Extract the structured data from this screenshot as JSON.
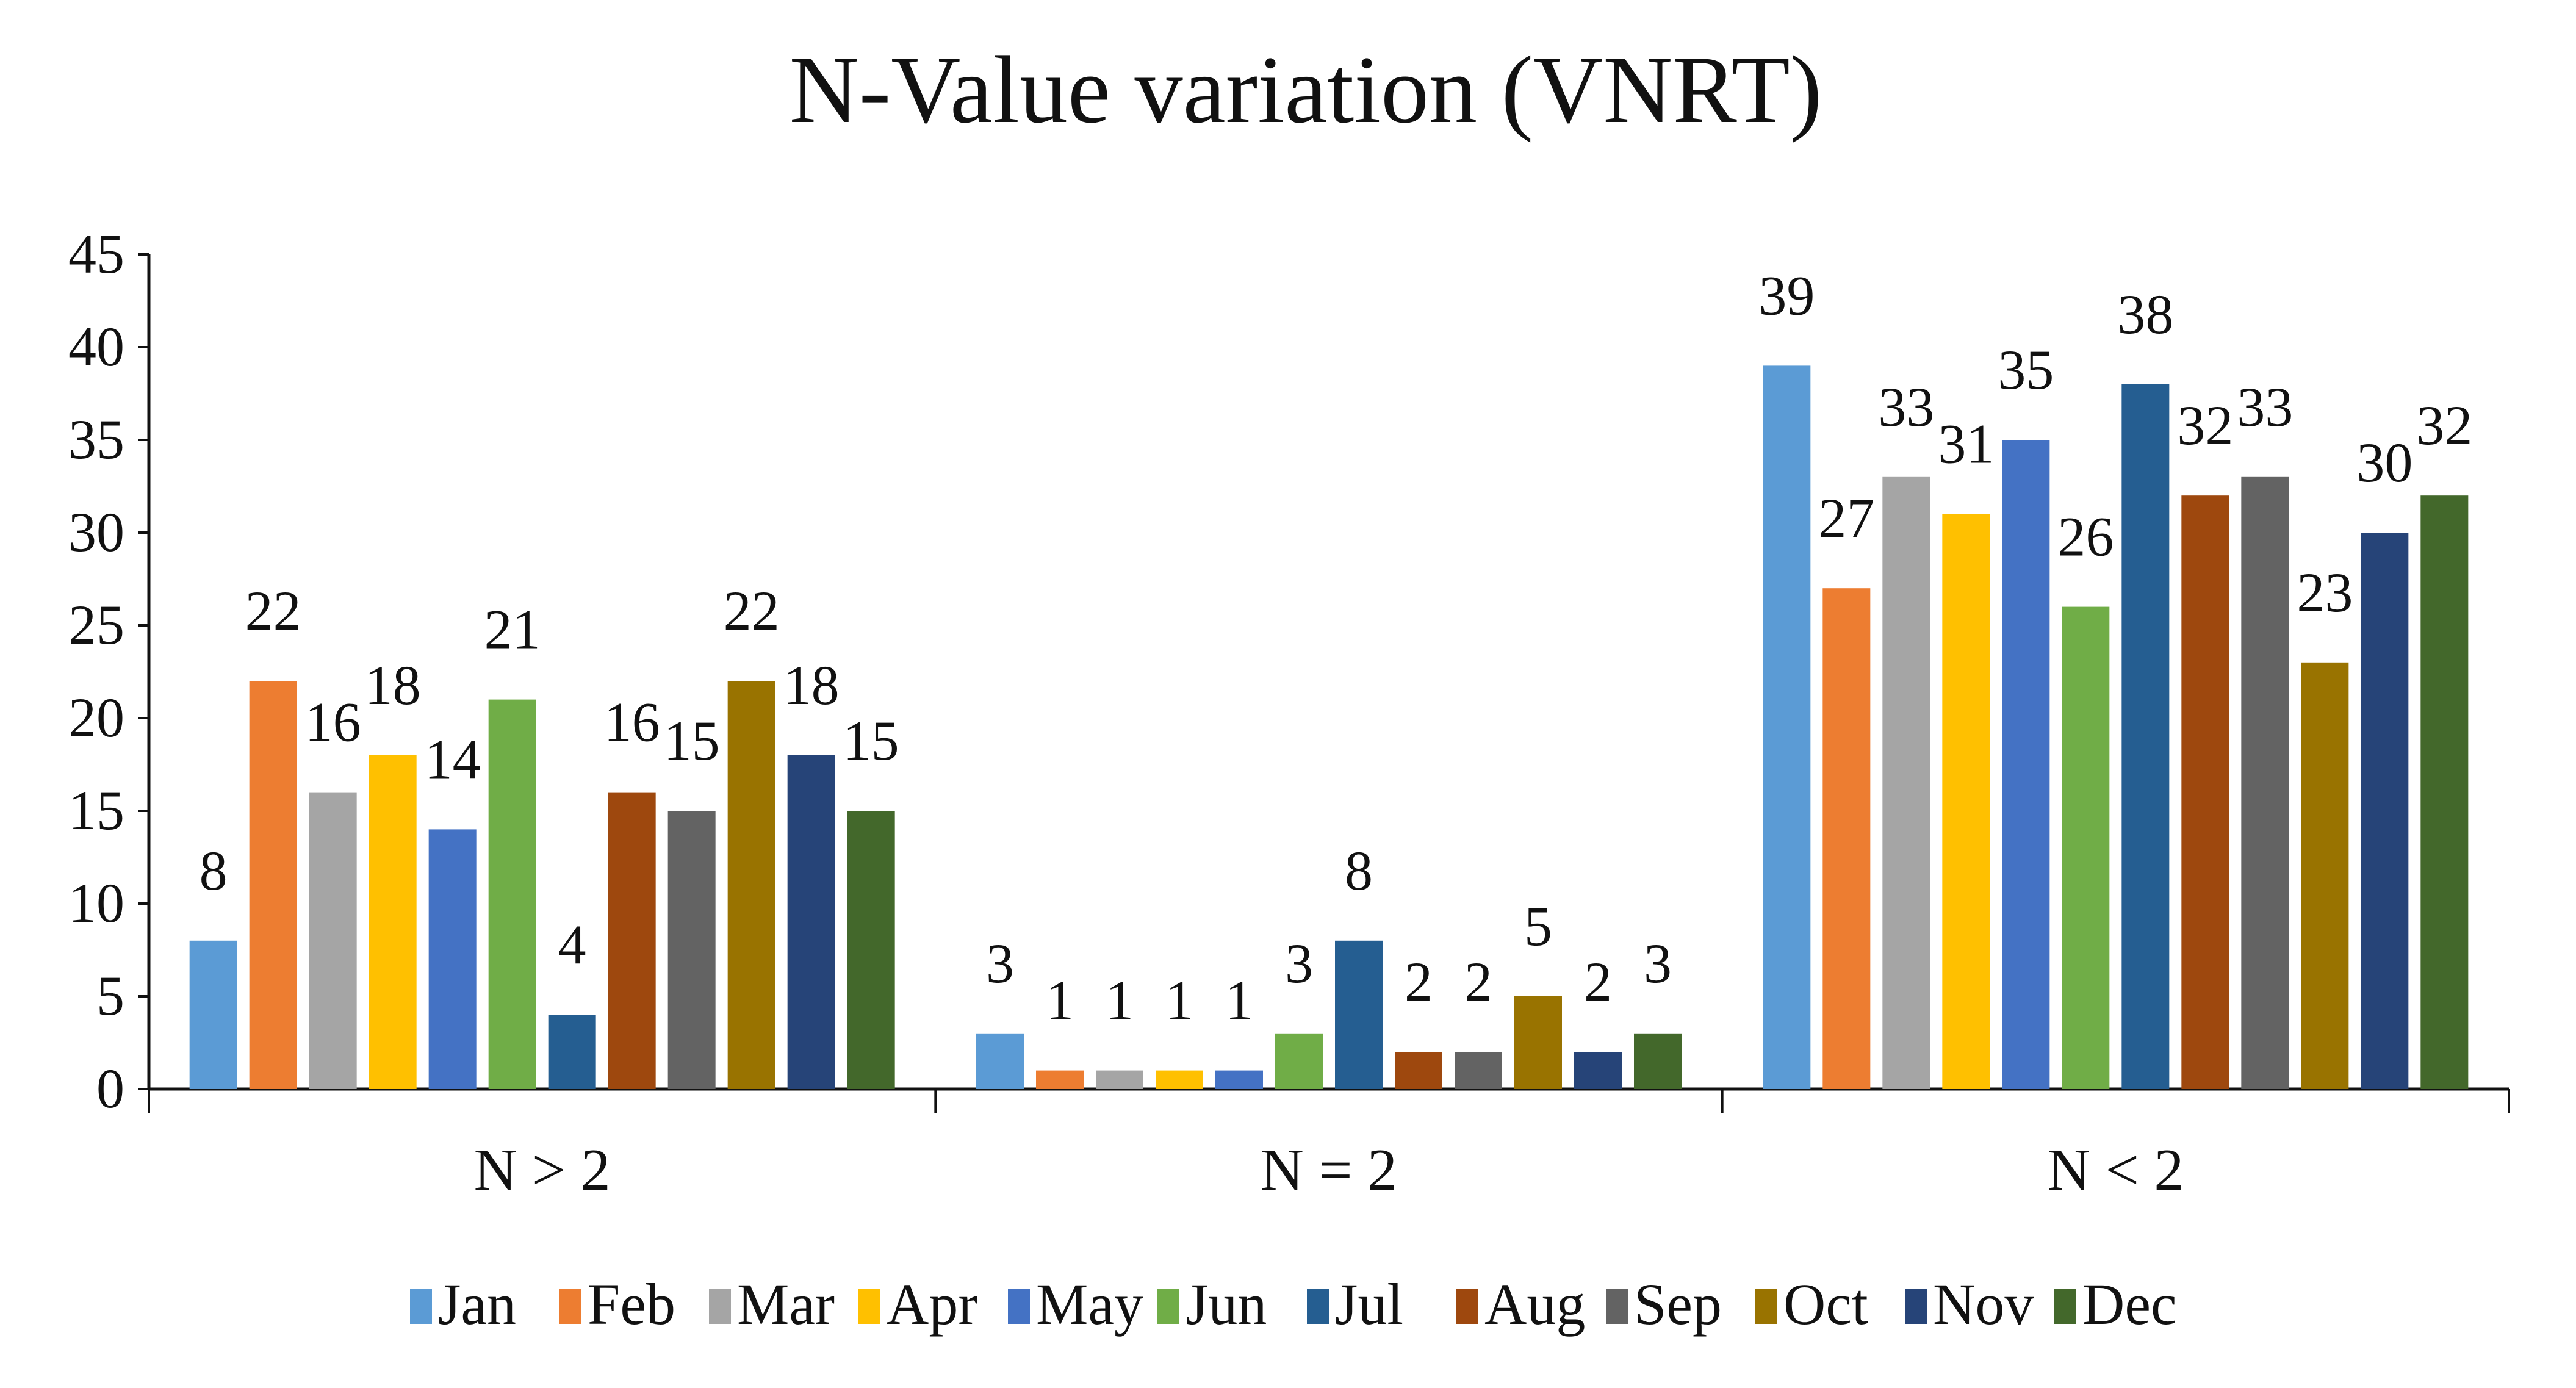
{
  "chart_data": {
    "type": "bar",
    "title": "N-Value variation (VNRT)",
    "xlabel": "",
    "ylabel": "",
    "ylim": [
      0,
      45
    ],
    "yticks": [
      0,
      5,
      10,
      15,
      20,
      25,
      30,
      35,
      40,
      45
    ],
    "grid": false,
    "legend_position": "bottom",
    "categories": [
      "N > 2",
      "N = 2",
      "N < 2"
    ],
    "series": [
      {
        "name": "Jan",
        "color": "#5B9BD5",
        "values": [
          8,
          3,
          39
        ]
      },
      {
        "name": "Feb",
        "color": "#ED7D31",
        "values": [
          22,
          1,
          27
        ]
      },
      {
        "name": "Mar",
        "color": "#A5A5A5",
        "values": [
          16,
          1,
          33
        ]
      },
      {
        "name": "Apr",
        "color": "#FFC000",
        "values": [
          18,
          1,
          31
        ]
      },
      {
        "name": "May",
        "color": "#4472C4",
        "values": [
          14,
          1,
          35
        ]
      },
      {
        "name": "Jun",
        "color": "#70AD47",
        "values": [
          21,
          3,
          26
        ]
      },
      {
        "name": "Jul",
        "color": "#255E91",
        "values": [
          4,
          8,
          38
        ]
      },
      {
        "name": "Aug",
        "color": "#9E480E",
        "values": [
          16,
          2,
          32
        ]
      },
      {
        "name": "Sep",
        "color": "#636363",
        "values": [
          15,
          2,
          33
        ]
      },
      {
        "name": "Oct",
        "color": "#997300",
        "values": [
          22,
          5,
          23
        ]
      },
      {
        "name": "Nov",
        "color": "#264478",
        "values": [
          18,
          2,
          30
        ]
      },
      {
        "name": "Dec",
        "color": "#43682B",
        "values": [
          15,
          3,
          32
        ]
      }
    ]
  }
}
